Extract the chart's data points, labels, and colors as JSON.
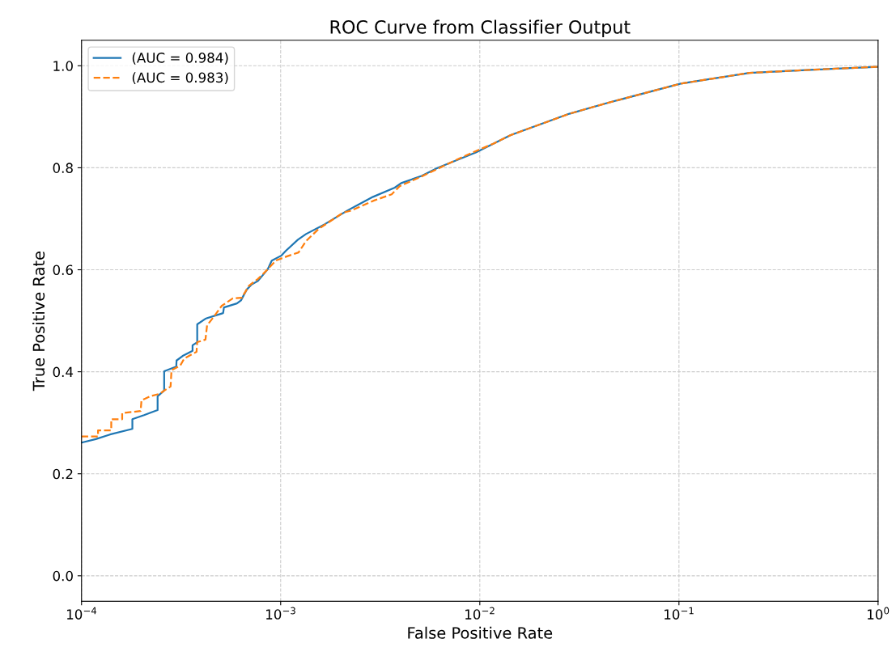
{
  "chart_data": {
    "type": "line",
    "title": "ROC Curve from Classifier Output",
    "xlabel": "False Positive Rate",
    "ylabel": "True Positive Rate",
    "log": "x",
    "grid": true,
    "legend": "top left",
    "xlim": [
      0.0001,
      1
    ],
    "xticks": [
      {
        "value": 0.0001,
        "label": "10$^{−4}$"
      },
      {
        "value": 0.001,
        "label": "10$^{−3}$"
      },
      {
        "value": 0.01,
        "label": "10$^{−2}$"
      },
      {
        "value": 0.1,
        "label": "10$^{−1}$"
      },
      {
        "value": 1,
        "label": "10$^{0}$"
      }
    ],
    "ylim": [
      -0.05,
      1.05
    ],
    "yticks": [
      {
        "value": 0,
        "label": "0.0"
      },
      {
        "value": 0.2,
        "label": "0.2"
      },
      {
        "value": 0.4,
        "label": "0.4"
      },
      {
        "value": 0.6,
        "label": "0.6"
      },
      {
        "value": 0.8,
        "label": "0.8"
      },
      {
        "value": 1,
        "label": "1.0"
      }
    ],
    "series": [
      {
        "name": "(AUC = 0.984)",
        "color": "#1f77b4",
        "line_style": "solid",
        "x": [
          0.0001,
          0.000118,
          0.000139,
          0.00018,
          0.00018,
          0.000206,
          0.000241,
          0.000241,
          0.00026,
          0.00026,
          0.000299,
          0.0003,
          0.000322,
          0.000361,
          0.000361,
          0.000381,
          0.000381,
          0.000419,
          0.000514,
          0.000519,
          0.000603,
          0.000632,
          0.000675,
          0.000714,
          0.000769,
          0.000861,
          0.000902,
          0.00101,
          0.00106,
          0.00122,
          0.00134,
          0.00166,
          0.00216,
          0.00291,
          0.00374,
          0.00403,
          0.0051,
          0.00615,
          0.00955,
          0.0143,
          0.0282,
          0.0427,
          0.102,
          0.226,
          0.456,
          1
        ],
        "values": [
          0.261,
          0.268,
          0.277,
          0.288,
          0.307,
          0.315,
          0.325,
          0.352,
          0.363,
          0.401,
          0.41,
          0.422,
          0.431,
          0.441,
          0.452,
          0.458,
          0.493,
          0.504,
          0.515,
          0.526,
          0.534,
          0.54,
          0.561,
          0.571,
          0.578,
          0.601,
          0.618,
          0.628,
          0.637,
          0.659,
          0.67,
          0.689,
          0.716,
          0.743,
          0.761,
          0.77,
          0.784,
          0.8,
          0.83,
          0.864,
          0.906,
          0.926,
          0.965,
          0.986,
          0.992,
          0.998
        ]
      },
      {
        "name": "(AUC = 0.983)",
        "color": "#ff7f0e",
        "line_style": "dashed",
        "x": [
          0.0001,
          0.000121,
          0.000121,
          0.000141,
          0.000141,
          0.00016,
          0.00016,
          0.000198,
          0.0002,
          0.000222,
          0.000248,
          0.00026,
          0.00028,
          0.000283,
          0.000313,
          0.000328,
          0.000378,
          0.000381,
          0.000419,
          0.000427,
          0.00046,
          0.000505,
          0.000575,
          0.000638,
          0.000694,
          0.000769,
          0.000861,
          0.000946,
          0.00107,
          0.00123,
          0.00134,
          0.00155,
          0.00206,
          0.00226,
          0.00291,
          0.00361,
          0.00396,
          0.0051,
          0.00838,
          0.0118,
          0.0143,
          0.0282,
          0.0427,
          0.102,
          0.226,
          0.456,
          1
        ],
        "values": [
          0.273,
          0.273,
          0.285,
          0.285,
          0.307,
          0.307,
          0.319,
          0.323,
          0.344,
          0.352,
          0.357,
          0.363,
          0.371,
          0.403,
          0.412,
          0.426,
          0.439,
          0.458,
          0.463,
          0.491,
          0.507,
          0.529,
          0.544,
          0.545,
          0.569,
          0.582,
          0.601,
          0.618,
          0.626,
          0.634,
          0.656,
          0.68,
          0.712,
          0.716,
          0.735,
          0.748,
          0.764,
          0.783,
          0.823,
          0.848,
          0.864,
          0.906,
          0.926,
          0.965,
          0.986,
          0.992,
          0.998
        ]
      }
    ]
  }
}
